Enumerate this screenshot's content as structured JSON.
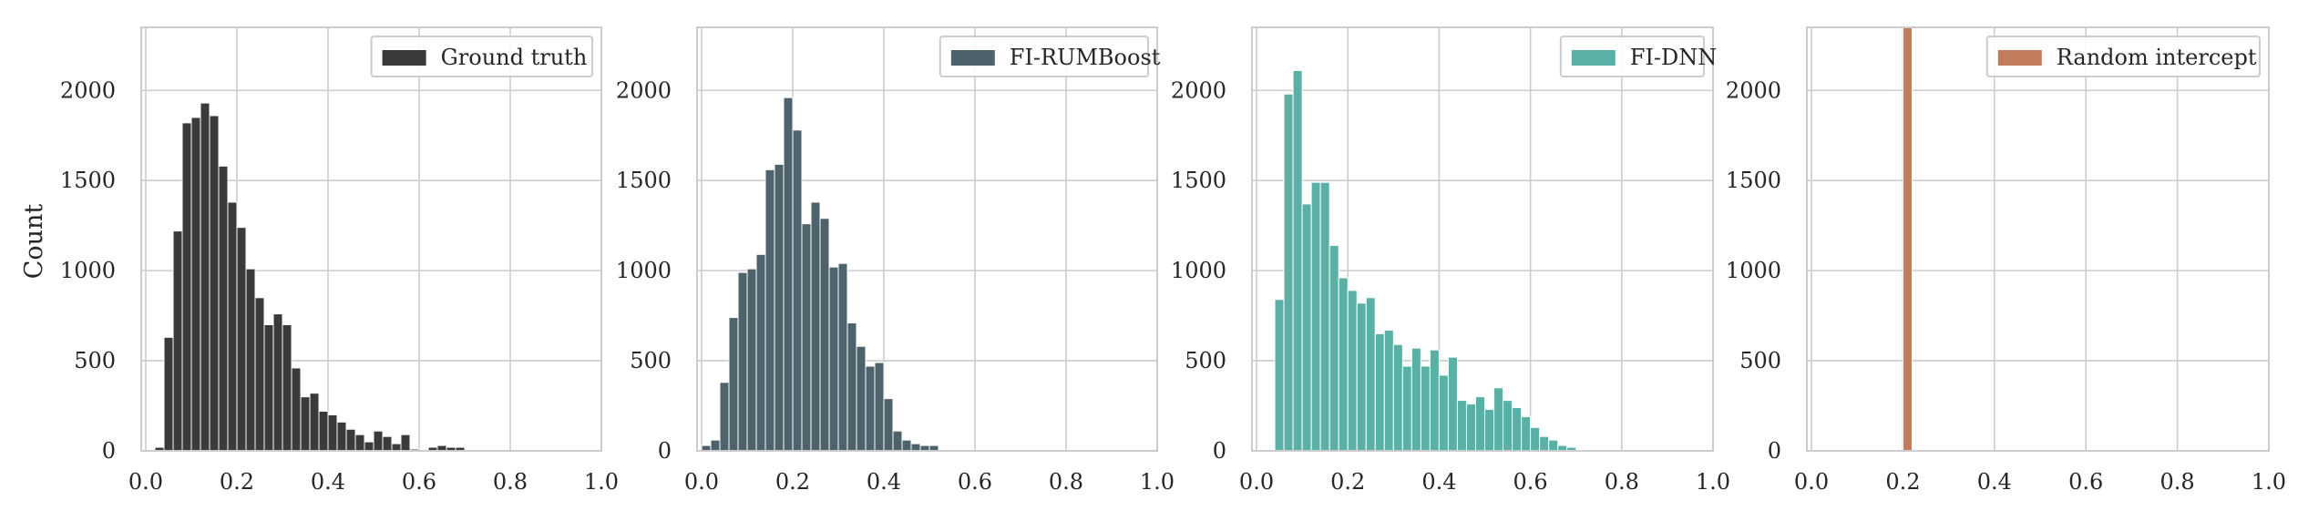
{
  "figure": {
    "panels": [
      {
        "legend_label": "Ground truth",
        "color": "#3a3a3a"
      },
      {
        "legend_label": "FI-RUMBoost",
        "color": "#4d626b"
      },
      {
        "legend_label": "FI-DNN",
        "color": "#5ab0a4"
      },
      {
        "legend_label": "Random intercept",
        "color": "#c47a5c"
      }
    ]
  },
  "chart_data": [
    {
      "type": "bar",
      "title": "",
      "xlabel": "",
      "ylabel": "Count",
      "xlim": [
        -0.01,
        1.0
      ],
      "ylim": [
        0,
        2350
      ],
      "x_ticks": [
        "0.0",
        "0.2",
        "0.4",
        "0.6",
        "0.8",
        "1.0"
      ],
      "y_ticks": [
        "0",
        "500",
        "1000",
        "1500",
        "2000"
      ],
      "grid": true,
      "legend": "top-right",
      "bin_width": 0.02,
      "series": [
        {
          "name": "Ground truth",
          "bin_starts": [
            0.02,
            0.04,
            0.06,
            0.08,
            0.1,
            0.12,
            0.14,
            0.16,
            0.18,
            0.2,
            0.22,
            0.24,
            0.26,
            0.28,
            0.3,
            0.32,
            0.34,
            0.36,
            0.38,
            0.4,
            0.42,
            0.44,
            0.46,
            0.48,
            0.5,
            0.52,
            0.54,
            0.56,
            0.58,
            0.6,
            0.62,
            0.64,
            0.66,
            0.68
          ],
          "values": [
            20,
            630,
            1220,
            1820,
            1850,
            1930,
            1860,
            1580,
            1380,
            1240,
            1010,
            850,
            700,
            760,
            700,
            460,
            300,
            320,
            220,
            200,
            160,
            120,
            90,
            50,
            110,
            80,
            40,
            90,
            10,
            0,
            20,
            30,
            20,
            20
          ]
        }
      ]
    },
    {
      "type": "bar",
      "title": "",
      "xlabel": "",
      "ylabel": "",
      "xlim": [
        -0.01,
        1.0
      ],
      "ylim": [
        0,
        2350
      ],
      "x_ticks": [
        "0.0",
        "0.2",
        "0.4",
        "0.6",
        "0.8",
        "1.0"
      ],
      "y_ticks": [
        "0",
        "500",
        "1000",
        "1500",
        "2000"
      ],
      "grid": true,
      "legend": "top-right",
      "bin_width": 0.02,
      "series": [
        {
          "name": "FI-RUMBoost",
          "bin_starts": [
            0.0,
            0.02,
            0.04,
            0.06,
            0.08,
            0.1,
            0.12,
            0.14,
            0.16,
            0.18,
            0.2,
            0.22,
            0.24,
            0.26,
            0.28,
            0.3,
            0.32,
            0.34,
            0.36,
            0.38,
            0.4,
            0.42,
            0.44,
            0.46,
            0.48,
            0.5
          ],
          "values": [
            30,
            60,
            380,
            740,
            990,
            1010,
            1090,
            1560,
            1590,
            1960,
            1780,
            1260,
            1380,
            1290,
            1020,
            1040,
            710,
            580,
            470,
            490,
            290,
            110,
            60,
            40,
            30,
            30
          ]
        }
      ]
    },
    {
      "type": "bar",
      "title": "",
      "xlabel": "",
      "ylabel": "",
      "xlim": [
        -0.01,
        1.0
      ],
      "ylim": [
        0,
        2350
      ],
      "x_ticks": [
        "0.0",
        "0.2",
        "0.4",
        "0.6",
        "0.8",
        "1.0"
      ],
      "y_ticks": [
        "0",
        "500",
        "1000",
        "1500",
        "2000"
      ],
      "grid": true,
      "legend": "top-right",
      "bin_width": 0.02,
      "series": [
        {
          "name": "FI-DNN",
          "bin_starts": [
            0.04,
            0.06,
            0.08,
            0.1,
            0.12,
            0.14,
            0.16,
            0.18,
            0.2,
            0.22,
            0.24,
            0.26,
            0.28,
            0.3,
            0.32,
            0.34,
            0.36,
            0.38,
            0.4,
            0.42,
            0.44,
            0.46,
            0.48,
            0.5,
            0.52,
            0.54,
            0.56,
            0.58,
            0.6,
            0.62,
            0.64,
            0.66,
            0.68
          ],
          "values": [
            840,
            1980,
            2110,
            1370,
            1490,
            1490,
            1140,
            960,
            890,
            820,
            850,
            650,
            670,
            590,
            470,
            570,
            470,
            560,
            420,
            520,
            280,
            260,
            300,
            230,
            350,
            280,
            240,
            190,
            130,
            80,
            60,
            30,
            20
          ]
        }
      ]
    },
    {
      "type": "bar",
      "title": "",
      "xlabel": "",
      "ylabel": "",
      "xlim": [
        -0.01,
        1.0
      ],
      "ylim": [
        0,
        2350
      ],
      "x_ticks": [
        "0.0",
        "0.2",
        "0.4",
        "0.6",
        "0.8",
        "1.0"
      ],
      "y_ticks": [
        "0",
        "500",
        "1000",
        "1500",
        "2000"
      ],
      "grid": true,
      "legend": "top-right",
      "bin_width": 0.02,
      "series": [
        {
          "name": "Random intercept",
          "bin_starts": [
            0.2
          ],
          "values": [
            2350
          ]
        }
      ]
    }
  ]
}
